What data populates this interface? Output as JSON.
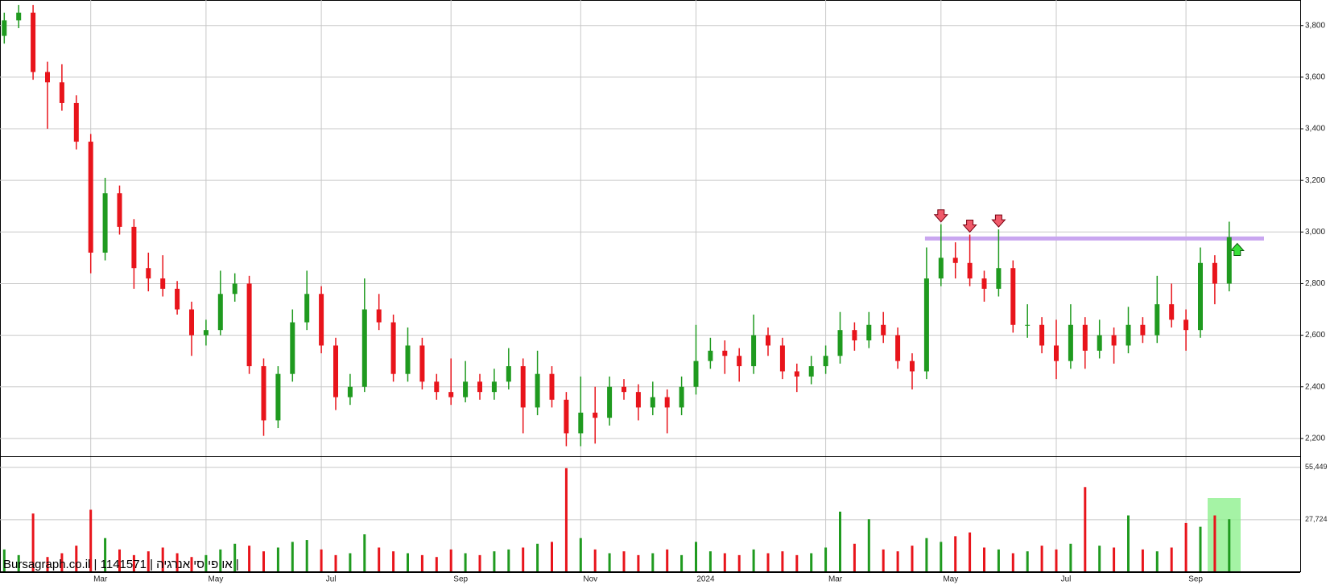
{
  "chart_data": {
    "type": "candlestick",
    "watermark": "Bursagraph.co.il | 1141571 | או פי סי אנרגיה |",
    "categories": [
      null,
      null,
      null,
      null,
      null,
      null,
      "Mar",
      null,
      null,
      null,
      null,
      null,
      null,
      null,
      "May",
      null,
      null,
      null,
      null,
      null,
      null,
      null,
      "Jul",
      null,
      null,
      null,
      null,
      null,
      null,
      null,
      null,
      "Sep",
      null,
      null,
      null,
      null,
      null,
      null,
      null,
      null,
      "Nov",
      null,
      null,
      null,
      null,
      null,
      null,
      null,
      "2024",
      null,
      null,
      null,
      null,
      null,
      null,
      null,
      null,
      "Mar",
      null,
      null,
      null,
      null,
      null,
      null,
      null,
      "May",
      null,
      null,
      null,
      null,
      null,
      null,
      null,
      "Jul",
      null,
      null,
      null,
      null,
      null,
      null,
      null,
      null,
      "Sep",
      null,
      null,
      null
    ],
    "open": [
      3760,
      3820,
      3850,
      3620,
      3580,
      3500,
      3350,
      2920,
      3150,
      3020,
      2860,
      2820,
      2780,
      2700,
      2600,
      2620,
      2760,
      2800,
      2480,
      2270,
      2450,
      2650,
      2760,
      2560,
      2360,
      2400,
      2700,
      2650,
      2450,
      2560,
      2420,
      2380,
      2360,
      2420,
      2380,
      2420,
      2480,
      2320,
      2450,
      2350,
      2220,
      2300,
      2280,
      2400,
      2380,
      2320,
      2360,
      2320,
      2400,
      2500,
      2540,
      2520,
      2480,
      2600,
      2560,
      2460,
      2440,
      2480,
      2520,
      2620,
      2580,
      2640,
      2600,
      2500,
      2460,
      2820,
      2900,
      2880,
      2820,
      2780,
      2860,
      2640,
      2640,
      2560,
      2500,
      2640,
      2540,
      2600,
      2560,
      2640,
      2600,
      2720,
      2660,
      2620,
      2880,
      2800
    ],
    "high": [
      3850,
      3880,
      3880,
      3660,
      3650,
      3530,
      3380,
      3210,
      3180,
      3050,
      2920,
      2910,
      2810,
      2730,
      2660,
      2850,
      2840,
      2830,
      2510,
      2480,
      2700,
      2850,
      2790,
      2590,
      2450,
      2820,
      2760,
      2680,
      2630,
      2590,
      2450,
      2510,
      2500,
      2450,
      2470,
      2550,
      2510,
      2540,
      2480,
      2380,
      2440,
      2400,
      2440,
      2430,
      2410,
      2420,
      2390,
      2440,
      2640,
      2590,
      2580,
      2550,
      2680,
      2630,
      2590,
      2490,
      2520,
      2560,
      2690,
      2650,
      2690,
      2690,
      2630,
      2530,
      2940,
      3030,
      2960,
      2990,
      2850,
      3010,
      2890,
      2720,
      2670,
      2660,
      2720,
      2670,
      2660,
      2630,
      2710,
      2670,
      2830,
      2800,
      2700,
      2940,
      2910,
      3040
    ],
    "low": [
      3730,
      3790,
      3590,
      3400,
      3470,
      3320,
      2840,
      2890,
      2990,
      2780,
      2770,
      2750,
      2680,
      2520,
      2560,
      2600,
      2730,
      2450,
      2210,
      2240,
      2420,
      2620,
      2530,
      2310,
      2330,
      2380,
      2620,
      2420,
      2420,
      2390,
      2350,
      2330,
      2340,
      2350,
      2350,
      2390,
      2220,
      2290,
      2320,
      2170,
      2170,
      2180,
      2250,
      2350,
      2270,
      2290,
      2220,
      2290,
      2370,
      2470,
      2450,
      2420,
      2450,
      2520,
      2430,
      2380,
      2410,
      2450,
      2490,
      2540,
      2550,
      2570,
      2470,
      2390,
      2430,
      2790,
      2820,
      2790,
      2730,
      2750,
      2610,
      2590,
      2530,
      2430,
      2470,
      2470,
      2510,
      2490,
      2530,
      2570,
      2570,
      2630,
      2540,
      2590,
      2720,
      2770
    ],
    "close": [
      3820,
      3850,
      3620,
      3580,
      3500,
      3350,
      2920,
      3150,
      3020,
      2860,
      2820,
      2780,
      2700,
      2600,
      2620,
      2760,
      2800,
      2480,
      2270,
      2450,
      2650,
      2760,
      2560,
      2360,
      2400,
      2700,
      2650,
      2450,
      2560,
      2420,
      2380,
      2360,
      2420,
      2380,
      2420,
      2480,
      2320,
      2450,
      2350,
      2220,
      2300,
      2280,
      2400,
      2380,
      2320,
      2360,
      2320,
      2400,
      2500,
      2540,
      2520,
      2480,
      2600,
      2560,
      2460,
      2440,
      2480,
      2520,
      2620,
      2580,
      2640,
      2600,
      2500,
      2460,
      2820,
      2900,
      2880,
      2820,
      2780,
      2860,
      2640,
      2640,
      2560,
      2500,
      2640,
      2540,
      2600,
      2560,
      2640,
      2600,
      2720,
      2660,
      2620,
      2880,
      2800,
      2980
    ],
    "volume": [
      12000,
      9000,
      31000,
      8000,
      10000,
      14000,
      33000,
      18000,
      12000,
      9000,
      11000,
      13000,
      10000,
      8000,
      9000,
      12000,
      15000,
      14000,
      11000,
      13000,
      16000,
      17000,
      12000,
      9000,
      10000,
      20000,
      13000,
      11000,
      10000,
      9000,
      8000,
      12000,
      10000,
      9000,
      11000,
      12000,
      13000,
      15000,
      16000,
      55000,
      18000,
      12000,
      10000,
      11000,
      9000,
      10000,
      12000,
      9000,
      16000,
      11000,
      10000,
      9000,
      12000,
      10000,
      11000,
      9000,
      10000,
      13000,
      32000,
      15000,
      28000,
      12000,
      11000,
      14000,
      18000,
      16000,
      19000,
      21000,
      13000,
      12000,
      10000,
      11000,
      14000,
      12000,
      15000,
      45000,
      14000,
      13000,
      30000,
      12000,
      11000,
      13000,
      26000,
      24000,
      30000,
      28000
    ],
    "up_color": "#1f9a1f",
    "down_color": "#e8141b",
    "ylim": [
      2131,
      3899
    ],
    "yticks": [
      {
        "value": 2200,
        "label": "2,200"
      },
      {
        "value": 2400,
        "label": "2,400"
      },
      {
        "value": 2600,
        "label": "2,600"
      },
      {
        "value": 2800,
        "label": "2,800"
      },
      {
        "value": 3000,
        "label": "3,000"
      },
      {
        "value": 3200,
        "label": "3,200"
      },
      {
        "value": 3400,
        "label": "3,400"
      },
      {
        "value": 3600,
        "label": "3,600"
      },
      {
        "value": 3800,
        "label": "3,800"
      }
    ],
    "volume_ylim": [
      0,
      61300
    ],
    "volume_yticks": [
      {
        "value": 27724,
        "label": "27,724"
      },
      {
        "value": 55449,
        "label": "55,449"
      }
    ],
    "grid": true
  }
}
